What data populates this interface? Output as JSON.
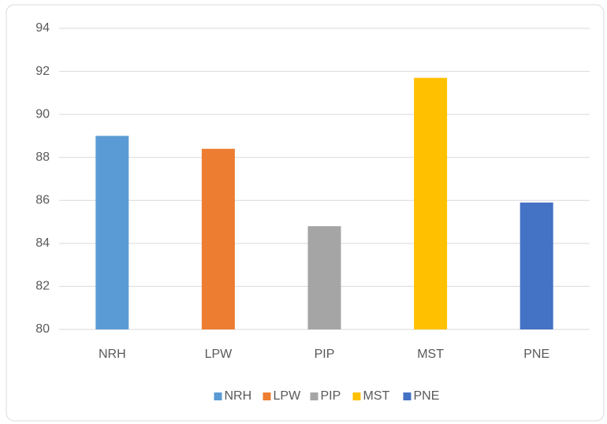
{
  "chart_data": {
    "type": "bar",
    "categories": [
      "NRH",
      "LPW",
      "PIP",
      "MST",
      "PNE"
    ],
    "values": [
      89.0,
      88.4,
      84.8,
      91.7,
      85.9
    ],
    "colors": [
      "#5b9bd5",
      "#ed7d31",
      "#a5a5a5",
      "#ffc000",
      "#4472c4"
    ],
    "ylim": [
      80,
      94
    ],
    "yticks": [
      80,
      82,
      84,
      86,
      88,
      90,
      92,
      94
    ],
    "grid": true,
    "legend": "bottom"
  }
}
